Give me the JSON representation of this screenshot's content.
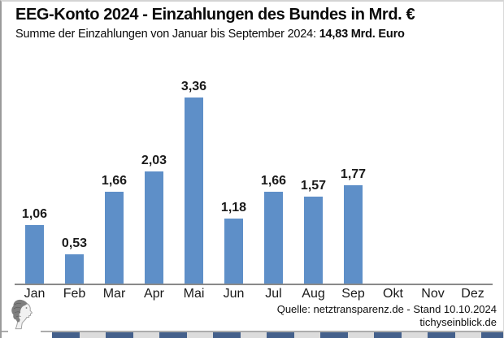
{
  "header": {
    "title": "EEG-Konto 2024 - Einzahlungen des Bundes in Mrd. €",
    "subtitle_prefix": "Summe der Einzahlungen von Januar bis September 2024: ",
    "subtitle_bold": "14,83 Mrd. Euro"
  },
  "chart_data": {
    "type": "bar",
    "title": "EEG-Konto 2024 - Einzahlungen des Bundes in Mrd. €",
    "subtitle": "Summe der Einzahlungen von Januar bis September 2024: 14,83 Mrd. Euro",
    "categories": [
      "Jan",
      "Feb",
      "Mar",
      "Apr",
      "Mai",
      "Jun",
      "Jul",
      "Aug",
      "Sep",
      "Okt",
      "Nov",
      "Dez"
    ],
    "values": [
      1.06,
      0.53,
      1.66,
      2.03,
      3.36,
      1.18,
      1.66,
      1.57,
      1.77,
      null,
      null,
      null
    ],
    "value_labels": [
      "1,06",
      "0,53",
      "1,66",
      "2,03",
      "3,36",
      "1,18",
      "1,66",
      "1,57",
      "1,77",
      "",
      "",
      ""
    ],
    "xlabel": "",
    "ylabel": "",
    "ylim": [
      0,
      3.7
    ],
    "grid": false,
    "legend": false,
    "bar_color": "#5e8fc8",
    "axis_color": "#898989",
    "unit": "Mrd. €"
  },
  "footer": {
    "source_line": "Quelle: netztransparenz.de - Stand 10.10.2024",
    "site_line": "tichyseinblick.de",
    "logo_icon": "classical-head-engraving-logo"
  },
  "colors": {
    "bar": "#5e8fc8",
    "axis": "#898989",
    "strip_segment": "#44608b",
    "strip_background": "#dcdcdc"
  }
}
